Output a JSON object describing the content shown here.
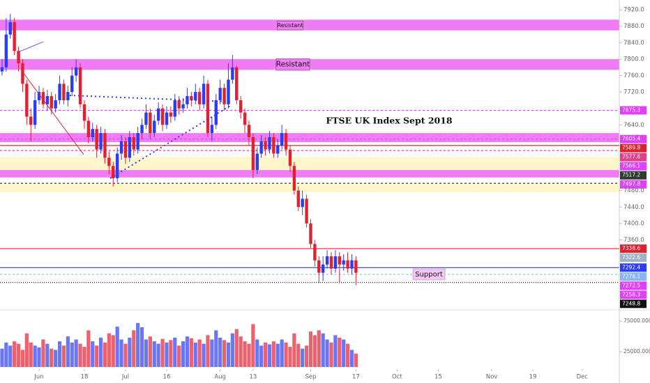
{
  "chart_data": {
    "type": "candlestick",
    "title": "FTSE UK Index Sept 2018",
    "annotations": [
      {
        "text": "Resistant",
        "value": 7882
      },
      {
        "text": "Resistant",
        "value": 7787
      },
      {
        "text": "Support",
        "value": 7276
      }
    ],
    "xlim": [
      -0.5,
      150
    ],
    "xticks": [
      {
        "value": 9,
        "label": "Jun"
      },
      {
        "value": 20,
        "label": "18"
      },
      {
        "value": 30,
        "label": "Jul"
      },
      {
        "value": 40,
        "label": "16"
      },
      {
        "value": 53,
        "label": "Aug"
      },
      {
        "value": 61,
        "label": "13"
      },
      {
        "value": 75,
        "label": "Sep"
      },
      {
        "value": 86,
        "label": "17"
      },
      {
        "value": 96,
        "label": "Oct"
      },
      {
        "value": 106,
        "label": "15"
      },
      {
        "value": 119,
        "label": "Nov"
      },
      {
        "value": 129,
        "label": "19"
      },
      {
        "value": 141,
        "label": "Dec"
      }
    ],
    "ylim": [
      7198,
      7944
    ],
    "yticks": [
      {
        "value": 7920,
        "label": "7920.0"
      },
      {
        "value": 7880,
        "label": "7880.0"
      },
      {
        "value": 7840,
        "label": "7840.0"
      },
      {
        "value": 7800,
        "label": "7800.0"
      },
      {
        "value": 7760,
        "label": "7760.0"
      },
      {
        "value": 7720,
        "label": "7720.0"
      },
      {
        "value": 7640,
        "label": "7640.0"
      },
      {
        "value": 7480,
        "label": "7480.0"
      },
      {
        "value": 7440,
        "label": "7440.0"
      },
      {
        "value": 7400,
        "label": "7400.0"
      },
      {
        "value": 7360,
        "label": "7360.0"
      }
    ],
    "volume_ylim": [
      0,
      90000
    ],
    "volume_ticks": [
      {
        "value": 75000,
        "label": "75000.0000"
      },
      {
        "value": 25000,
        "label": "25000.0000"
      }
    ],
    "up_color": "#2b3cf5",
    "down_color": "#e3202f",
    "open": [
      7770,
      7780,
      7860,
      7890,
      7820,
      7790,
      7740,
      7660,
      7640,
      7700,
      7720,
      7690,
      7710,
      7680,
      7700,
      7740,
      7700,
      7720,
      7760,
      7780,
      7690,
      7650,
      7610,
      7630,
      7580,
      7620,
      7560,
      7540,
      7510,
      7570,
      7600,
      7560,
      7610,
      7580,
      7620,
      7640,
      7670,
      7620,
      7650,
      7680,
      7640,
      7670,
      7660,
      7700,
      7680,
      7690,
      7710,
      7700,
      7720,
      7690,
      7740,
      7620,
      7640,
      7700,
      7730,
      7690,
      7750,
      7780,
      7700,
      7670,
      7640,
      7610,
      7530,
      7570,
      7600,
      7580,
      7610,
      7570,
      7590,
      7620,
      7580,
      7540,
      7480,
      7440,
      7460,
      7400,
      7350,
      7310,
      7280,
      7300,
      7320,
      7290,
      7320,
      7300,
      7310,
      7290,
      7310
    ],
    "high": [
      7800,
      7900,
      7910,
      7900,
      7830,
      7800,
      7750,
      7680,
      7720,
      7735,
      7730,
      7725,
      7720,
      7715,
      7760,
      7750,
      7735,
      7780,
      7800,
      7790,
      7700,
      7660,
      7645,
      7640,
      7635,
      7630,
      7575,
      7550,
      7585,
      7615,
      7610,
      7625,
      7620,
      7635,
      7655,
      7690,
      7680,
      7665,
      7695,
      7690,
      7685,
      7685,
      7715,
      7710,
      7705,
      7730,
      7720,
      7740,
      7730,
      7760,
      7750,
      7660,
      7715,
      7750,
      7740,
      7790,
      7810,
      7785,
      7710,
      7680,
      7650,
      7620,
      7585,
      7615,
      7610,
      7625,
      7620,
      7605,
      7640,
      7630,
      7590,
      7550,
      7490,
      7480,
      7470,
      7410,
      7360,
      7320,
      7320,
      7335,
      7330,
      7335,
      7330,
      7325,
      7330,
      7325,
      7320
    ],
    "low": [
      7760,
      7770,
      7850,
      7810,
      7770,
      7720,
      7640,
      7600,
      7630,
      7690,
      7680,
      7675,
      7665,
      7670,
      7690,
      7690,
      7685,
      7710,
      7745,
      7680,
      7630,
      7595,
      7600,
      7560,
      7570,
      7545,
      7520,
      7490,
      7500,
      7555,
      7545,
      7550,
      7565,
      7570,
      7605,
      7630,
      7605,
      7610,
      7640,
      7625,
      7630,
      7645,
      7650,
      7665,
      7670,
      7680,
      7685,
      7690,
      7675,
      7680,
      7610,
      7600,
      7630,
      7690,
      7675,
      7680,
      7740,
      7690,
      7655,
      7620,
      7590,
      7510,
      7520,
      7560,
      7565,
      7570,
      7560,
      7560,
      7580,
      7565,
      7525,
      7470,
      7430,
      7420,
      7390,
      7340,
      7295,
      7255,
      7260,
      7290,
      7275,
      7280,
      7255,
      7285,
      7280,
      7275,
      7250
    ],
    "close": [
      7780,
      7860,
      7890,
      7820,
      7790,
      7740,
      7660,
      7640,
      7700,
      7720,
      7690,
      7710,
      7680,
      7700,
      7740,
      7700,
      7720,
      7760,
      7780,
      7690,
      7650,
      7610,
      7630,
      7580,
      7620,
      7560,
      7540,
      7510,
      7570,
      7600,
      7560,
      7610,
      7580,
      7620,
      7640,
      7670,
      7620,
      7650,
      7680,
      7640,
      7670,
      7660,
      7700,
      7680,
      7690,
      7710,
      7700,
      7720,
      7690,
      7740,
      7620,
      7640,
      7700,
      7730,
      7690,
      7750,
      7780,
      7700,
      7670,
      7640,
      7610,
      7530,
      7570,
      7600,
      7580,
      7610,
      7570,
      7590,
      7620,
      7580,
      7540,
      7480,
      7440,
      7460,
      7400,
      7350,
      7310,
      7280,
      7300,
      7320,
      7290,
      7320,
      7300,
      7310,
      7290,
      7310,
      7280
    ],
    "volume": [
      30000,
      40000,
      35000,
      42000,
      38000,
      28000,
      55000,
      40000,
      35000,
      32000,
      45000,
      38000,
      30000,
      28000,
      42000,
      35000,
      50000,
      40000,
      45000,
      38000,
      33000,
      60000,
      42000,
      35000,
      48000,
      40000,
      55000,
      52000,
      66000,
      45000,
      38000,
      48000,
      60000,
      72000,
      65000,
      45000,
      50000,
      42000,
      38000,
      46000,
      40000,
      44000,
      48000,
      35000,
      42000,
      50000,
      47000,
      40000,
      45000,
      38000,
      52000,
      45000,
      60000,
      48000,
      44000,
      40000,
      55000,
      62000,
      50000,
      42000,
      38000,
      70000,
      45000,
      35000,
      40000,
      37000,
      42000,
      38000,
      45000,
      40000,
      33000,
      55000,
      38000,
      30000,
      35000,
      58000,
      52000,
      60000,
      55000,
      45000,
      40000,
      52000,
      48000,
      45000,
      38000,
      28000,
      22000
    ],
    "bands": [
      {
        "from": 7870,
        "to": 7896,
        "color": "#f07cf5"
      },
      {
        "from": 7774,
        "to": 7800,
        "color": "#f07cf5"
      },
      {
        "from": 7598,
        "to": 7620,
        "color": "#f07cf5"
      },
      {
        "from": 7530,
        "to": 7562,
        "color": "#fff6cc"
      },
      {
        "from": 7512,
        "to": 7530,
        "color": "#f07cf5"
      },
      {
        "from": 7476,
        "to": 7498,
        "color": "#fff6cc"
      }
    ],
    "levels": [
      {
        "value": 7675.3,
        "color": "#e040fb",
        "style": "dashed"
      },
      {
        "value": 7605.4,
        "color": "#e040fb",
        "style": "dashed"
      },
      {
        "value": 7589.8,
        "color": "#e3202f",
        "style": "solid"
      },
      {
        "value": 7577.6,
        "color": "#e0408b",
        "style": "dashed"
      },
      {
        "value": 7566.1,
        "color": "#e040fb",
        "style": "none"
      },
      {
        "value": 7517.2,
        "color": "#2e3b2e",
        "style": "none"
      },
      {
        "value": 7497.8,
        "color": "#e040fb",
        "style": "dashed-black"
      },
      {
        "value": 7338.6,
        "color": "#e3202f",
        "style": "solid"
      },
      {
        "value": 7322.6,
        "color": "#9fb3c8",
        "style": "none"
      },
      {
        "value": 7292.4,
        "color": "#2b3cf5",
        "style": "solid"
      },
      {
        "value": 7276.1,
        "color": "#8ab4f8",
        "style": "dashed"
      },
      {
        "value": 7272.5,
        "color": "#e040fb",
        "style": "none"
      },
      {
        "value": 7256.3,
        "color": "#e040fb",
        "style": "dotted-black"
      },
      {
        "value": 7248.8,
        "color": "#111111",
        "style": "none"
      }
    ]
  }
}
